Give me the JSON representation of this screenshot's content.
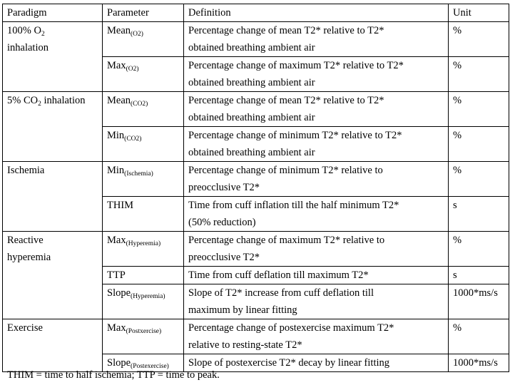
{
  "headers": [
    "Paradigm",
    "Parameter",
    "Definition",
    "Unit"
  ],
  "groups": [
    {
      "paradigm": [
        {
          "text": "100% O",
          "sub": "2",
          "after": ""
        },
        {
          "text": "inhalation",
          "sub": "",
          "after": ""
        }
      ],
      "rows": [
        {
          "param": "Mean",
          "sub": "(O2)",
          "definition": [
            "Percentage change of mean T2* relative to T2*",
            "obtained breathing ambient air"
          ],
          "unit": "%"
        },
        {
          "param": "Max",
          "sub": "(O2)",
          "definition": [
            "Percentage change of maximum T2* relative to T2*",
            "obtained breathing ambient air"
          ],
          "unit": "%"
        }
      ]
    },
    {
      "paradigm": [
        {
          "text": "5% CO",
          "sub": "2",
          "after": " inhalation"
        }
      ],
      "rows": [
        {
          "param": "Mean",
          "sub": "(CO2)",
          "definition": [
            "Percentage change of mean T2* relative to T2*",
            "obtained breathing ambient air"
          ],
          "unit": "%"
        },
        {
          "param": "Min",
          "sub": "(CO2)",
          "definition": [
            "Percentage change of minimum T2* relative to T2*",
            "obtained breathing ambient air"
          ],
          "unit": "%"
        }
      ]
    },
    {
      "paradigm": [
        {
          "text": "Ischemia",
          "sub": "",
          "after": ""
        }
      ],
      "rows": [
        {
          "param": "Min",
          "sub": "(Ischemia)",
          "definition": [
            "Percentage change of minimum T2* relative to",
            "preocclusive T2*"
          ],
          "unit": "%"
        },
        {
          "param": "THIM",
          "sub": "",
          "definition": [
            "Time from cuff inflation till the half minimum T2*",
            "(50% reduction)"
          ],
          "unit": "s"
        }
      ]
    },
    {
      "paradigm": [
        {
          "text": "Reactive",
          "sub": "",
          "after": ""
        },
        {
          "text": "hyperemia",
          "sub": "",
          "after": ""
        }
      ],
      "rows": [
        {
          "param": "Max",
          "sub": "(Hyperemia)",
          "definition": [
            "Percentage change of maximum T2* relative to",
            "preocclusive T2*"
          ],
          "unit": "%"
        },
        {
          "param": "TTP",
          "sub": "",
          "definition": [
            "Time from cuff deflation till maximum T2*"
          ],
          "unit": "s"
        },
        {
          "param": "Slope",
          "sub": "(Hyperemia)",
          "definition": [
            "Slope of T2* increase from cuff deflation till",
            "maximum by linear fitting"
          ],
          "unit": "1000*ms/s"
        }
      ]
    },
    {
      "paradigm": [
        {
          "text": "Exercise",
          "sub": "",
          "after": ""
        }
      ],
      "rows": [
        {
          "param": "Max",
          "sub": "(Postxercise)",
          "definition": [
            "Percentage change of postexercise maximum T2*",
            "relative to resting-state T2*"
          ],
          "unit": "%"
        },
        {
          "param": "Slope",
          "sub": "(Postexercise)",
          "definition": [
            "Slope of postexercise T2* decay by linear fitting"
          ],
          "unit": "1000*ms/s"
        }
      ]
    }
  ],
  "footnote": "THIM = time to half ischemia; TTP = time to peak."
}
